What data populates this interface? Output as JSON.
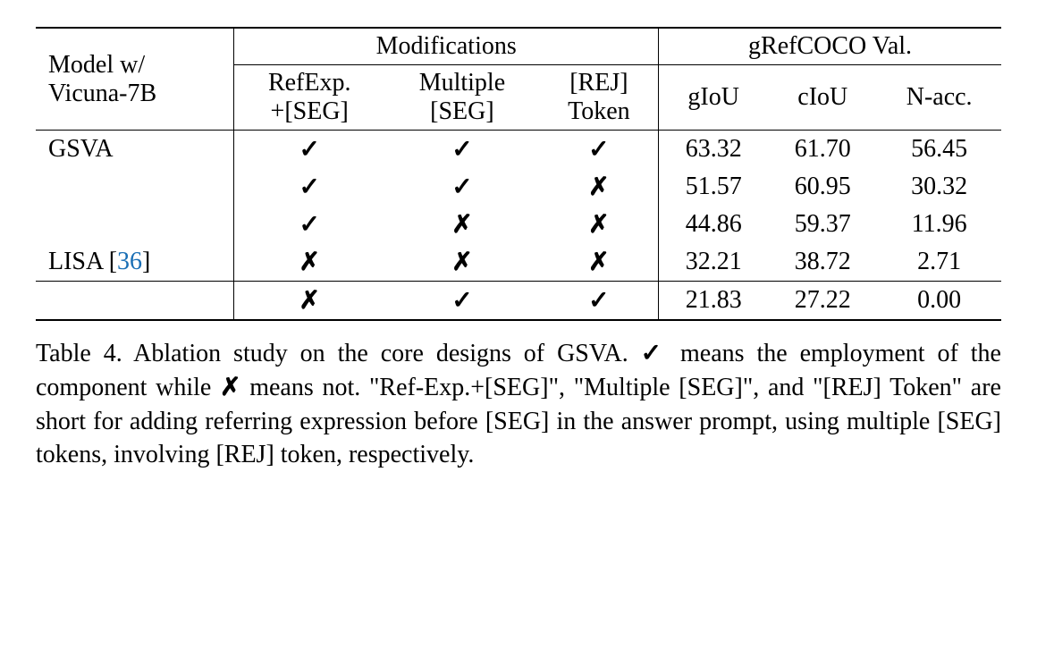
{
  "table": {
    "header": {
      "model_label_line1": "Model w/",
      "model_label_line2": "Vicuna-7B",
      "modifications_group": "Modifications",
      "grefcoco_group": "gRefCOCO Val.",
      "col_refexp_line1": "RefExp.",
      "col_refexp_line2": "+[SEG]",
      "col_multiple_line1": "Multiple",
      "col_multiple_line2": "[SEG]",
      "col_rej_line1": "[REJ]",
      "col_rej_line2": "Token",
      "col_giou": "gIoU",
      "col_ciou": "cIoU",
      "col_nacc": "N-acc."
    },
    "marks": {
      "check": "✓",
      "cross": "✗"
    },
    "rows": [
      {
        "model": "GSVA",
        "refexp": "✓",
        "multiple": "✓",
        "rej": "✓",
        "giou": "63.32",
        "ciou": "61.70",
        "nacc": "56.45"
      },
      {
        "model": "",
        "refexp": "✓",
        "multiple": "✓",
        "rej": "✗",
        "giou": "51.57",
        "ciou": "60.95",
        "nacc": "30.32"
      },
      {
        "model": "",
        "refexp": "✓",
        "multiple": "✗",
        "rej": "✗",
        "giou": "44.86",
        "ciou": "59.37",
        "nacc": "11.96"
      },
      {
        "model": "LISA",
        "cite": "36",
        "refexp": "✗",
        "multiple": "✗",
        "rej": "✗",
        "giou": "32.21",
        "ciou": "38.72",
        "nacc": "2.71"
      }
    ],
    "extra_row": {
      "model": "",
      "refexp": "✗",
      "multiple": "✓",
      "rej": "✓",
      "giou": "21.83",
      "ciou": "27.22",
      "nacc": "0.00"
    }
  },
  "caption": {
    "prefix": "Table 4.  Ablation study on the core designs of GSVA. ",
    "check": "✓",
    "mid1": " means the employment of the component while ",
    "cross": "✗",
    "mid2": " means not.  \"Ref-Exp.+[SEG]\", \"Multiple [SEG]\", and \"[REJ] Token\" are short for adding referring expression before [SEG] in the answer prompt, using multiple [SEG] tokens, involving [REJ] token, respectively."
  }
}
